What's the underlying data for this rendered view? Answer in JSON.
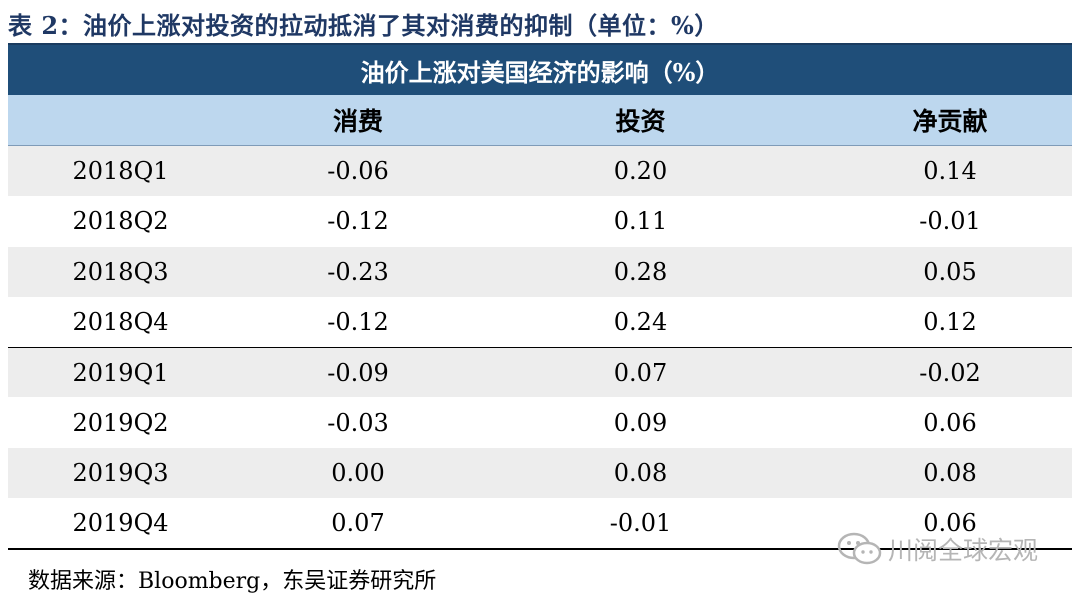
{
  "caption": "表 2：油价上涨对投资的拉动抵消了其对消费的抑制（单位：%）",
  "table": {
    "title": "油价上涨对美国经济的影响（%）",
    "headers": [
      "",
      "消费",
      "投资",
      "净贡献"
    ],
    "rows": [
      [
        "2018Q1",
        "-0.06",
        "0.20",
        "0.14"
      ],
      [
        "2018Q2",
        "-0.12",
        "0.11",
        "-0.01"
      ],
      [
        "2018Q3",
        "-0.23",
        "0.28",
        "0.05"
      ],
      [
        "2018Q4",
        "-0.12",
        "0.24",
        "0.12"
      ],
      [
        "2019Q1",
        "-0.09",
        "0.07",
        "-0.02"
      ],
      [
        "2019Q2",
        "-0.03",
        "0.09",
        "0.06"
      ],
      [
        "2019Q3",
        "0.00",
        "0.08",
        "0.08"
      ],
      [
        "2019Q4",
        "0.07",
        "-0.01",
        "0.06"
      ]
    ]
  },
  "source": "数据来源：Bloomberg，东吴证券研究所",
  "watermark": "川阅全球宏观",
  "watermark_icon": "wechat-icon"
}
